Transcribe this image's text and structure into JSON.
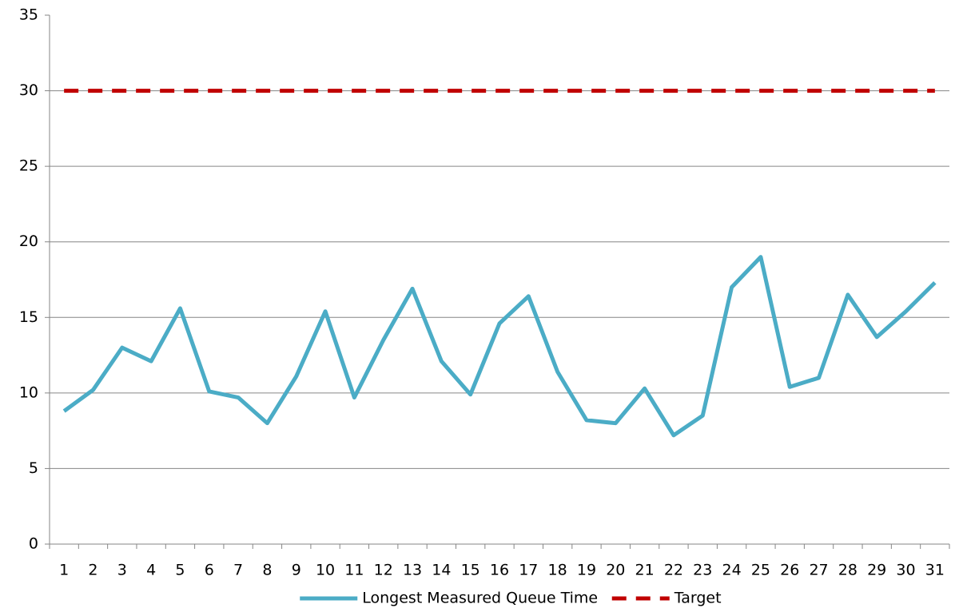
{
  "chart_data": {
    "type": "line",
    "categories": [
      "1",
      "2",
      "3",
      "4",
      "5",
      "6",
      "7",
      "8",
      "9",
      "10",
      "11",
      "12",
      "13",
      "14",
      "15",
      "16",
      "17",
      "18",
      "19",
      "20",
      "21",
      "22",
      "23",
      "24",
      "25",
      "26",
      "27",
      "28",
      "29",
      "30",
      "31"
    ],
    "series": [
      {
        "name": "Longest Measured Queue Time",
        "color": "#4bacc6",
        "dash": false,
        "values": [
          8.8,
          10.2,
          13.0,
          12.1,
          15.6,
          10.1,
          9.7,
          8.0,
          11.1,
          15.4,
          9.7,
          13.5,
          16.9,
          12.1,
          9.9,
          14.6,
          16.4,
          11.4,
          8.2,
          8.0,
          10.3,
          7.2,
          8.5,
          17.0,
          19.0,
          10.4,
          11.0,
          16.5,
          13.7,
          15.4,
          17.3
        ]
      },
      {
        "name": "Target",
        "color": "#c00000",
        "dash": true,
        "values": [
          30,
          30,
          30,
          30,
          30,
          30,
          30,
          30,
          30,
          30,
          30,
          30,
          30,
          30,
          30,
          30,
          30,
          30,
          30,
          30,
          30,
          30,
          30,
          30,
          30,
          30,
          30,
          30,
          30,
          30,
          30
        ]
      }
    ],
    "ylim": [
      0,
      35
    ],
    "yticks": [
      0,
      5,
      10,
      15,
      20,
      25,
      30,
      35
    ],
    "grid": true,
    "legend": "bottom"
  }
}
